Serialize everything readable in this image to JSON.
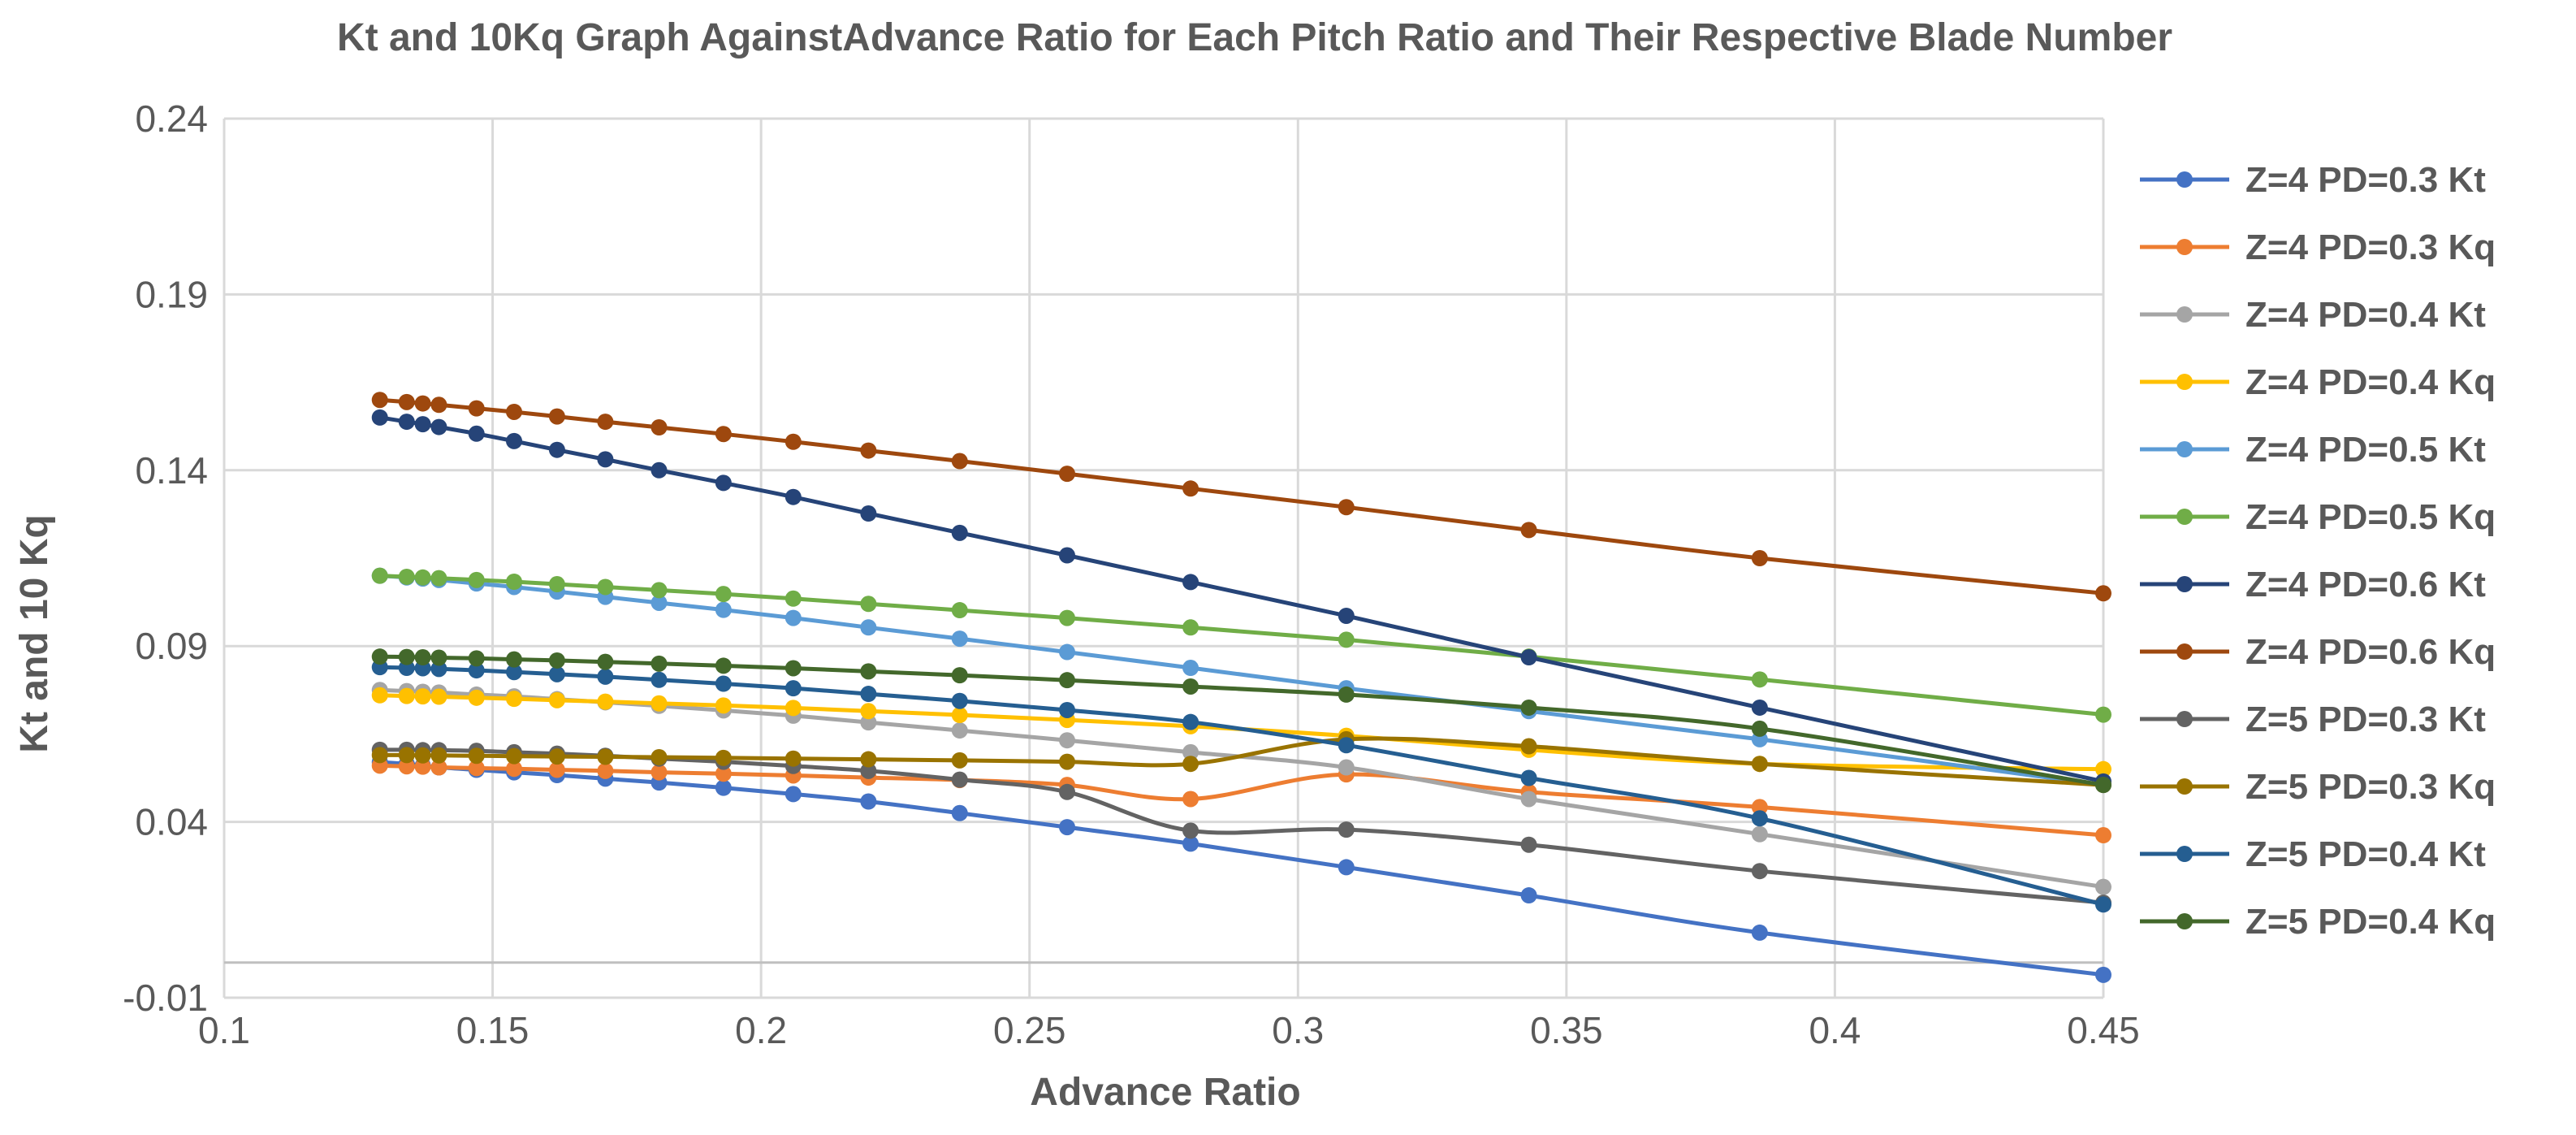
{
  "chart_data": {
    "type": "line",
    "title": "Kt and 10Kq Graph AgainstAdvance Ratio for Each Pitch Ratio and Their Respective Blade Number",
    "xlabel": "Advance Ratio",
    "ylabel": "Kt and 10 Kq",
    "xlim": [
      0.1,
      0.45
    ],
    "ylim": [
      -0.01,
      0.24
    ],
    "xticks": [
      "0.1",
      "0.15",
      "0.2",
      "0.25",
      "0.3",
      "0.35",
      "0.4",
      "0.45"
    ],
    "yticks": [
      "-0.01",
      "0.04",
      "0.09",
      "0.14",
      "0.19",
      "0.24"
    ],
    "grid": true,
    "legend_position": "right",
    "x": [
      0.129,
      0.134,
      0.137,
      0.14,
      0.147,
      0.154,
      0.162,
      0.171,
      0.181,
      0.193,
      0.206,
      0.22,
      0.237,
      0.257,
      0.28,
      0.309,
      0.343,
      0.386,
      0.45
    ],
    "series": [
      {
        "name": "Z=4 PD=0.3 Kt",
        "color": "#4472C4",
        "values": [
          0.057,
          0.0565,
          0.056,
          0.0555,
          0.0548,
          0.0541,
          0.0533,
          0.0523,
          0.0512,
          0.0497,
          0.0479,
          0.0458,
          0.0425,
          0.0385,
          0.0338,
          0.0271,
          0.0191,
          0.0085,
          -0.0035
        ]
      },
      {
        "name": "Z=4 PD=0.3 Kq",
        "color": "#ED7D31",
        "values": [
          0.056,
          0.0558,
          0.0557,
          0.0555,
          0.0553,
          0.0551,
          0.0548,
          0.0545,
          0.0541,
          0.0537,
          0.0532,
          0.0526,
          0.0519,
          0.0505,
          0.0465,
          0.0535,
          0.0485,
          0.0442,
          0.0362
        ]
      },
      {
        "name": "Z=4 PD=0.4 Kt",
        "color": "#A5A5A5",
        "values": [
          0.0775,
          0.0772,
          0.077,
          0.0768,
          0.0762,
          0.0757,
          0.0749,
          0.074,
          0.073,
          0.0717,
          0.0702,
          0.0683,
          0.066,
          0.0632,
          0.0598,
          0.0555,
          0.0465,
          0.0365,
          0.0215
        ]
      },
      {
        "name": "Z=4 PD=0.4 Kq",
        "color": "#FFC000",
        "values": [
          0.076,
          0.0758,
          0.0757,
          0.0756,
          0.0753,
          0.075,
          0.0746,
          0.0742,
          0.0737,
          0.0731,
          0.0724,
          0.0715,
          0.0704,
          0.069,
          0.0672,
          0.0645,
          0.0605,
          0.0565,
          0.055
        ]
      },
      {
        "name": "Z=4 PD=0.5 Kt",
        "color": "#5B9BD5",
        "values": [
          0.11,
          0.1095,
          0.1092,
          0.1088,
          0.1078,
          0.1068,
          0.1055,
          0.104,
          0.1023,
          0.1003,
          0.098,
          0.0953,
          0.0921,
          0.0883,
          0.0838,
          0.078,
          0.0715,
          0.0635,
          0.0505
        ]
      },
      {
        "name": "Z=4 PD=0.5 Kq",
        "color": "#70AD47",
        "values": [
          0.11,
          0.1097,
          0.1095,
          0.1093,
          0.1088,
          0.1083,
          0.1076,
          0.1068,
          0.1059,
          0.1048,
          0.1035,
          0.102,
          0.1002,
          0.098,
          0.0953,
          0.0918,
          0.087,
          0.0805,
          0.0705
        ]
      },
      {
        "name": "Z=4 PD=0.6 Kt",
        "color": "#264478",
        "values": [
          0.155,
          0.1538,
          0.1531,
          0.1523,
          0.1504,
          0.1483,
          0.1458,
          0.1431,
          0.14,
          0.1364,
          0.1324,
          0.1277,
          0.1222,
          0.1158,
          0.1082,
          0.0986,
          0.0868,
          0.0725,
          0.0515
        ]
      },
      {
        "name": "Z=4 PD=0.6 Kq",
        "color": "#9E480E",
        "values": [
          0.16,
          0.1594,
          0.159,
          0.1586,
          0.1576,
          0.1566,
          0.1553,
          0.1538,
          0.1522,
          0.1503,
          0.1481,
          0.1456,
          0.1426,
          0.139,
          0.1348,
          0.1295,
          0.123,
          0.115,
          0.105
        ]
      },
      {
        "name": "Z=5 PD=0.3 Kt",
        "color": "#636363",
        "values": [
          0.0605,
          0.0605,
          0.0604,
          0.0604,
          0.0602,
          0.0598,
          0.0594,
          0.0588,
          0.058,
          0.0571,
          0.0559,
          0.0545,
          0.052,
          0.0485,
          0.0375,
          0.0378,
          0.0335,
          0.026,
          0.017
        ]
      },
      {
        "name": "Z=5 PD=0.3 Kq",
        "color": "#997300",
        "values": [
          0.059,
          0.059,
          0.0589,
          0.0589,
          0.0588,
          0.0587,
          0.0586,
          0.0585,
          0.0584,
          0.0582,
          0.058,
          0.0578,
          0.0575,
          0.0571,
          0.0565,
          0.0635,
          0.0615,
          0.0565,
          0.0505
        ]
      },
      {
        "name": "Z=5 PD=0.4 Kt",
        "color": "#255E91",
        "values": [
          0.084,
          0.0838,
          0.0837,
          0.0835,
          0.0831,
          0.0826,
          0.082,
          0.0813,
          0.0804,
          0.0793,
          0.078,
          0.0764,
          0.0744,
          0.0718,
          0.0684,
          0.0618,
          0.0525,
          0.041,
          0.0165
        ]
      },
      {
        "name": "Z=5 PD=0.4 Kq",
        "color": "#43682B",
        "values": [
          0.087,
          0.0869,
          0.0868,
          0.0867,
          0.0865,
          0.0862,
          0.0859,
          0.0855,
          0.085,
          0.0844,
          0.0837,
          0.0828,
          0.0817,
          0.0803,
          0.0785,
          0.0762,
          0.0725,
          0.0665,
          0.0505
        ]
      }
    ]
  }
}
